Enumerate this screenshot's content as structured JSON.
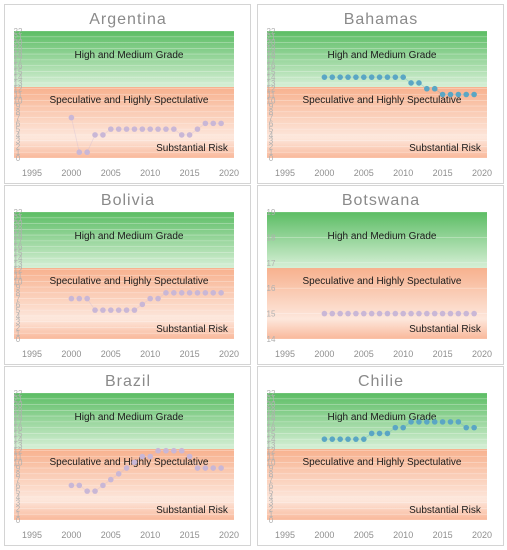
{
  "colors": {
    "high_band_top": "#d6efd6",
    "high_band_bottom": "#5cbd64",
    "spec_band_top": "#fde7dc",
    "spec_band_bottom": "#f7b18e",
    "risk_band": "#f9b89a",
    "marker_lilac": "#c9b7d6",
    "marker_blue": "#5aa6c4"
  },
  "chart_data": [
    {
      "type": "scatter",
      "title": "Argentina",
      "bands": [
        "High and Medium Grade",
        "Speculative and Highly Spectulative",
        "Substantial Risk"
      ],
      "x_ticks": [
        "1995",
        "2000",
        "2005",
        "2010",
        "2015",
        "2020"
      ],
      "xlim": [
        1995,
        2020
      ],
      "y_ticks": [
        "0",
        "1",
        "2",
        "3",
        "4",
        "5",
        "6",
        "7",
        "8",
        "9",
        "10",
        "11",
        "12",
        "13",
        "14",
        "15",
        "16",
        "17",
        "18",
        "19",
        "20",
        "21",
        "22"
      ],
      "ylim": [
        0,
        22
      ],
      "marker_color": "#c9b7d6",
      "x": [
        2000,
        2001,
        2002,
        2003,
        2004,
        2005,
        2006,
        2007,
        2008,
        2009,
        2010,
        2011,
        2012,
        2013,
        2014,
        2015,
        2016,
        2017,
        2018,
        2019
      ],
      "y": [
        7,
        1,
        1,
        4,
        4,
        5,
        5,
        5,
        5,
        5,
        5,
        5,
        5,
        5,
        4,
        4,
        5,
        6,
        6,
        6
      ]
    },
    {
      "type": "scatter",
      "title": "Bahamas",
      "bands": [
        "High and Medium Grade",
        "Speculative and Highly Spectulative",
        "Substantial Risk"
      ],
      "x_ticks": [
        "1995",
        "2000",
        "2005",
        "2010",
        "2015",
        "2020"
      ],
      "xlim": [
        1995,
        2020
      ],
      "y_ticks": [
        "0",
        "1",
        "2",
        "3",
        "4",
        "5",
        "6",
        "7",
        "8",
        "9",
        "10",
        "11",
        "12",
        "13",
        "14",
        "15",
        "16",
        "17",
        "18",
        "19",
        "20",
        "21",
        "22"
      ],
      "ylim": [
        0,
        22
      ],
      "marker_color": "#5aa6c4",
      "x": [
        2000,
        2001,
        2002,
        2003,
        2004,
        2005,
        2006,
        2007,
        2008,
        2009,
        2010,
        2011,
        2012,
        2013,
        2014,
        2015,
        2016,
        2017,
        2018,
        2019
      ],
      "y": [
        14,
        14,
        14,
        14,
        14,
        14,
        14,
        14,
        14,
        14,
        14,
        13,
        13,
        12,
        12,
        11,
        11,
        11,
        11,
        11
      ]
    },
    {
      "type": "scatter",
      "title": "Bolivia",
      "bands": [
        "High and Medium Grade",
        "Speculative and Highly Spectulative",
        "Substantial Risk"
      ],
      "x_ticks": [
        "1995",
        "2000",
        "2005",
        "2010",
        "2015",
        "2020"
      ],
      "xlim": [
        1995,
        2020
      ],
      "y_ticks": [
        "0",
        "1",
        "2",
        "3",
        "4",
        "5",
        "6",
        "7",
        "8",
        "9",
        "10",
        "11",
        "12",
        "13",
        "14",
        "15",
        "16",
        "17",
        "18",
        "19",
        "20",
        "21",
        "22"
      ],
      "ylim": [
        0,
        22
      ],
      "marker_color": "#c9b7d6",
      "x": [
        2000,
        2001,
        2002,
        2003,
        2004,
        2005,
        2006,
        2007,
        2008,
        2009,
        2010,
        2011,
        2012,
        2013,
        2014,
        2015,
        2016,
        2017,
        2018,
        2019
      ],
      "y": [
        7,
        7,
        7,
        5,
        5,
        5,
        5,
        5,
        5,
        6,
        7,
        7,
        8,
        8,
        8,
        8,
        8,
        8,
        8,
        8
      ]
    },
    {
      "type": "scatter",
      "title": "Botswana",
      "bands": [
        "High and Medium Grade",
        "Speculative and Highly Spectulative",
        "Substantial Risk"
      ],
      "x_ticks": [
        "1995",
        "2000",
        "2005",
        "2010",
        "2015",
        "2020"
      ],
      "xlim": [
        1995,
        2020
      ],
      "y_ticks": [
        "14",
        "15",
        "16",
        "17",
        "18",
        "19"
      ],
      "ylim": [
        14,
        19
      ],
      "marker_color": "#c9b7d6",
      "x": [
        2000,
        2001,
        2002,
        2003,
        2004,
        2005,
        2006,
        2007,
        2008,
        2009,
        2010,
        2011,
        2012,
        2013,
        2014,
        2015,
        2016,
        2017,
        2018,
        2019
      ],
      "y": [
        15,
        15,
        15,
        15,
        15,
        15,
        15,
        15,
        15,
        15,
        15,
        15,
        15,
        15,
        15,
        15,
        15,
        15,
        15,
        15
      ]
    },
    {
      "type": "scatter",
      "title": "Brazil",
      "bands": [
        "High and Medium Grade",
        "Speculative and Highly Spectulative",
        "Substantial Risk"
      ],
      "x_ticks": [
        "1995",
        "2000",
        "2005",
        "2010",
        "2015",
        "2020"
      ],
      "xlim": [
        1995,
        2020
      ],
      "y_ticks": [
        "0",
        "1",
        "2",
        "3",
        "4",
        "5",
        "6",
        "7",
        "8",
        "9",
        "10",
        "11",
        "12",
        "13",
        "14",
        "15",
        "16",
        "17",
        "18",
        "19",
        "20",
        "21",
        "22"
      ],
      "ylim": [
        0,
        22
      ],
      "marker_color": "#c9b7d6",
      "x": [
        2000,
        2001,
        2002,
        2003,
        2004,
        2005,
        2006,
        2007,
        2008,
        2009,
        2010,
        2011,
        2012,
        2013,
        2014,
        2015,
        2016,
        2017,
        2018,
        2019
      ],
      "y": [
        6,
        6,
        5,
        5,
        6,
        7,
        8,
        9,
        10,
        11,
        11,
        12,
        12,
        12,
        12,
        11,
        9,
        9,
        9,
        9
      ]
    },
    {
      "type": "scatter",
      "title": "Chilie",
      "bands": [
        "High and Medium Grade",
        "Speculative and Highly Spectulative",
        "Substantial Risk"
      ],
      "x_ticks": [
        "1995",
        "2000",
        "2005",
        "2010",
        "2015",
        "2020"
      ],
      "xlim": [
        1995,
        2020
      ],
      "y_ticks": [
        "0",
        "1",
        "2",
        "3",
        "4",
        "5",
        "6",
        "7",
        "8",
        "9",
        "10",
        "11",
        "12",
        "13",
        "14",
        "15",
        "16",
        "17",
        "18",
        "19",
        "20",
        "21",
        "22"
      ],
      "ylim": [
        0,
        22
      ],
      "marker_color": "#5aa6c4",
      "x": [
        2000,
        2001,
        2002,
        2003,
        2004,
        2005,
        2006,
        2007,
        2008,
        2009,
        2010,
        2011,
        2012,
        2013,
        2014,
        2015,
        2016,
        2017,
        2018,
        2019
      ],
      "y": [
        14,
        14,
        14,
        14,
        14,
        14,
        15,
        15,
        15,
        16,
        16,
        17,
        17,
        17,
        17,
        17,
        17,
        17,
        16,
        16
      ]
    }
  ]
}
